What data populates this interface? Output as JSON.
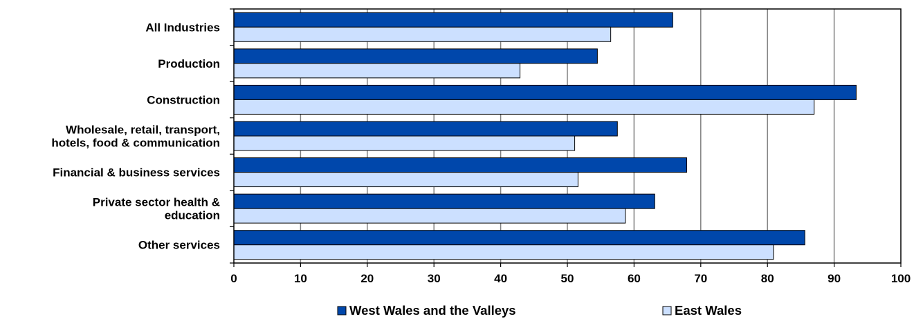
{
  "chart_data": {
    "type": "bar",
    "orientation": "horizontal",
    "categories": [
      [
        "All Industries"
      ],
      [
        "Production"
      ],
      [
        "Construction"
      ],
      [
        "Wholesale, retail, transport,",
        "hotels,  food & communication"
      ],
      [
        "Financial & business services"
      ],
      [
        "Private sector health &",
        "education"
      ],
      [
        "Other services"
      ]
    ],
    "series": [
      {
        "name": "West Wales and the Valleys",
        "color": "#0047AB",
        "values": [
          65.8,
          54.5,
          93.3,
          57.5,
          67.9,
          63.1,
          85.6
        ]
      },
      {
        "name": "East Wales",
        "color": "#CCE0FF",
        "values": [
          56.5,
          42.9,
          87.0,
          51.1,
          51.6,
          58.7,
          80.9
        ]
      }
    ],
    "xlim": [
      0,
      100
    ],
    "x_ticks": [
      "0",
      "10",
      "20",
      "30",
      "40",
      "50",
      "60",
      "70",
      "80",
      "90",
      "100"
    ],
    "grid": "vertical",
    "legend_position": "bottom",
    "title": "",
    "xlabel": "",
    "ylabel": ""
  }
}
